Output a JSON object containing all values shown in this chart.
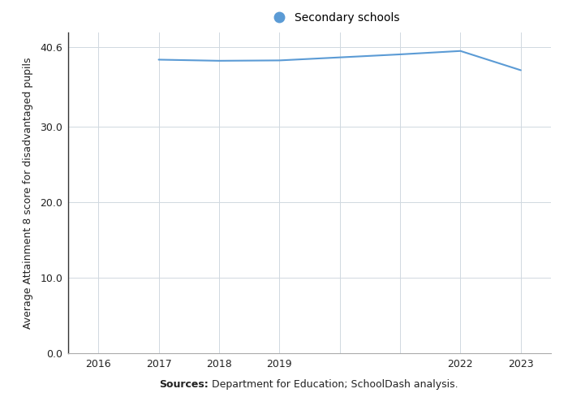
{
  "x": [
    2017,
    2018,
    2019,
    2020,
    2021,
    2022,
    2023
  ],
  "y": [
    38.9,
    38.75,
    38.8,
    39.2,
    39.6,
    40.05,
    37.5
  ],
  "line_color": "#5b9bd5",
  "ylabel": "Average Attainment 8 score for disadvantaged pupils",
  "xlim": [
    2015.5,
    2023.5
  ],
  "ylim": [
    0.0,
    42.5
  ],
  "yticks": [
    0.0,
    10.0,
    20.0,
    30.0,
    40.6
  ],
  "xticks_all": [
    2016,
    2017,
    2018,
    2019,
    2020,
    2021,
    2022,
    2023
  ],
  "xticks_show": [
    2016,
    2017,
    2018,
    2019,
    2022,
    2023
  ],
  "legend_label": "Secondary schools",
  "source_bold": "Sources:",
  "source_normal": " Department for Education; SchoolDash analysis.",
  "grid_color": "#d0d8e0",
  "plot_bg": "#ffffff",
  "fig_bg": "#ffffff",
  "spine_left_color": "#333333",
  "spine_bottom_color": "#aaaaaa",
  "axis_fontsize": 9,
  "legend_fontsize": 10,
  "source_fontsize": 9,
  "linewidth": 1.5
}
